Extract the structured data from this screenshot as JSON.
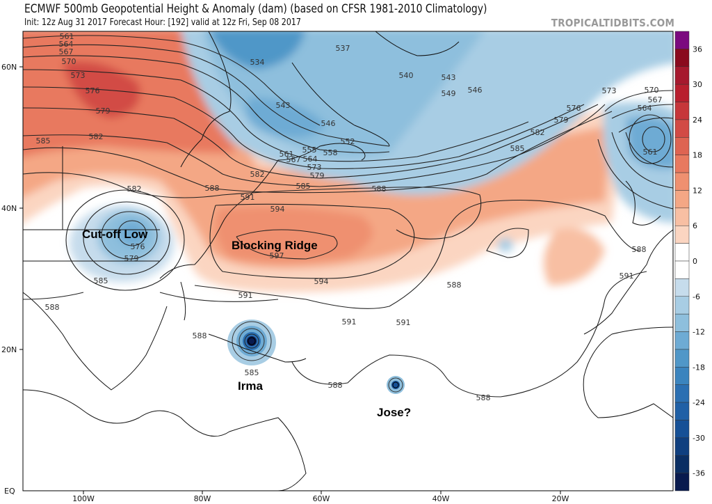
{
  "header": {
    "title": "ECMWF 500mb Geopotential Height & Anomaly (dam) (based on CFSR 1981-2010 Climatology)",
    "subtitle": "Init: 12z Aug 31 2017   Forecast Hour: [192]   valid at 12z Fri, Sep 08 2017",
    "brand": "TROPICALTIDBITS.COM"
  },
  "axes": {
    "lat_labels": [
      "60N",
      "40N",
      "20N",
      "EQ"
    ],
    "lon_labels": [
      "100W",
      "80W",
      "60W",
      "40W",
      "20W"
    ]
  },
  "colorbar": {
    "labels": [
      "36",
      "30",
      "24",
      "18",
      "12",
      "6",
      "0",
      "-6",
      "-12",
      "-18",
      "-24",
      "-30",
      "-36"
    ],
    "colors": [
      "#7b0a7f",
      "#8a0a1e",
      "#a6192e",
      "#b81f2e",
      "#c6363a",
      "#d24b45",
      "#de6452",
      "#e8795f",
      "#ef9070",
      "#f4a785",
      "#f8bfa3",
      "#fbd5c1",
      "#ffffff",
      "#ffffff",
      "#c6dcec",
      "#a8cde4",
      "#8ebfdd",
      "#6eabd4",
      "#5097c8",
      "#3b84be",
      "#2b6fb2",
      "#2060a6",
      "#165096",
      "#0f3f7f",
      "#0a2e63",
      "#081a4e"
    ]
  },
  "annotations": {
    "cutoff_low": "Cut-off Low",
    "blocking_ridge": "Blocking Ridge",
    "irma": "Irma",
    "jose": "Jose?"
  },
  "contour_labels": [
    "561",
    "564",
    "567",
    "570",
    "573",
    "576",
    "579",
    "582",
    "585",
    "534",
    "537",
    "540",
    "543",
    "546",
    "549",
    "543",
    "546",
    "552",
    "555",
    "558",
    "561",
    "564",
    "567",
    "573",
    "579",
    "582",
    "585",
    "588",
    "588",
    "591",
    "594",
    "597",
    "594",
    "591",
    "591",
    "591",
    "588",
    "588",
    "588",
    "585",
    "588",
    "588",
    "585",
    "582",
    "576",
    "579",
    "585",
    "582",
    "579",
    "576",
    "573",
    "570",
    "567",
    "564",
    "561",
    "588",
    "591"
  ]
}
